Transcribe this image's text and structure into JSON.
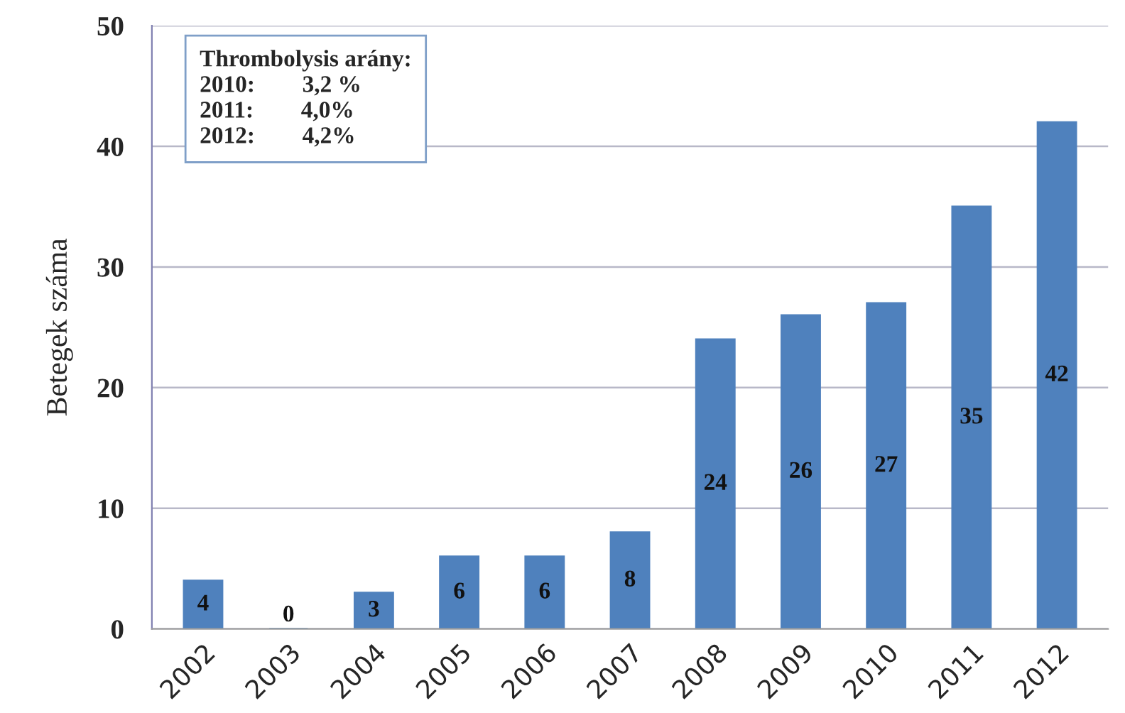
{
  "chart_data": {
    "type": "bar",
    "ylabel": "Betegek száma",
    "categories": [
      "2002",
      "2003",
      "2004",
      "2005",
      "2006",
      "2007",
      "2008",
      "2009",
      "2010",
      "2011",
      "2012"
    ],
    "values": [
      4,
      0,
      3,
      6,
      6,
      8,
      24,
      26,
      27,
      35,
      42
    ],
    "color": "#4f81bd",
    "ylim": [
      0,
      50
    ],
    "yticks": [
      0,
      10,
      20,
      30,
      40,
      50
    ],
    "grid": "y",
    "data_labels": true,
    "legend": false,
    "annotations": [
      "Thrombolysis arány:",
      "2010:        3,2 %",
      "2011:        4,0%",
      "2012:        4,2%"
    ]
  }
}
